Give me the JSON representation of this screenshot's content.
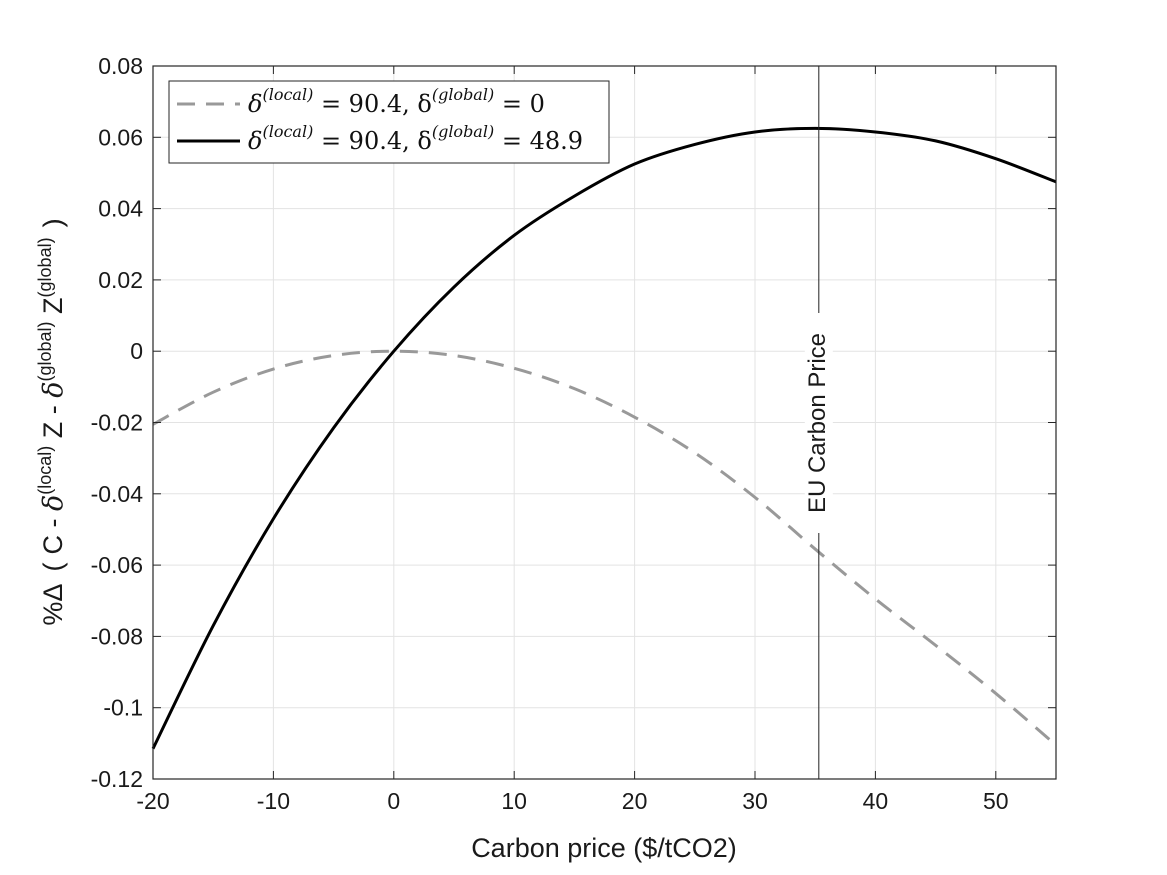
{
  "chart_data": {
    "type": "line",
    "xlabel": "Carbon price ($/tCO2)",
    "ylabel": {
      "prefix": "%Δ",
      "open": "(",
      "c": "C - ",
      "d1": "δ",
      "sup1": "(local)",
      "z1": " Z - ",
      "d2": "δ",
      "sup2": "(global)",
      "z2": " Z",
      "sup3": "(global)",
      "close": ")"
    },
    "xlim": [
      -20,
      55
    ],
    "ylim": [
      -0.12,
      0.08
    ],
    "xticks": [
      -20,
      -10,
      0,
      10,
      20,
      30,
      40,
      50
    ],
    "xtick_labels": [
      "-20",
      "-10",
      "0",
      "10",
      "20",
      "30",
      "40",
      "50"
    ],
    "yticks": [
      -0.12,
      -0.1,
      -0.08,
      -0.06,
      -0.04,
      -0.02,
      0,
      0.02,
      0.04,
      0.06,
      0.08
    ],
    "ytick_labels": [
      "-0.12",
      "-0.1",
      "-0.08",
      "-0.06",
      "-0.04",
      "-0.02",
      "0",
      "0.02",
      "0.04",
      "0.06",
      "0.08"
    ],
    "grid": true,
    "legend_position": "top-left",
    "series": [
      {
        "name": "δ(local) = 90.4, δ(global) = 0",
        "legend": {
          "pre": "δ",
          "sup1": "(local)",
          "mid": " = 90.4, δ",
          "sup2": "(global)",
          "post": " = 0"
        },
        "style": "dashed",
        "color": "#999999",
        "x": [
          -20,
          -15,
          -10,
          -5,
          0,
          5,
          10,
          15,
          20,
          25,
          30,
          35,
          40,
          45,
          50,
          55
        ],
        "y": [
          -0.0205,
          -0.0115,
          -0.005,
          -0.0012,
          0.0,
          -0.0012,
          -0.0048,
          -0.0105,
          -0.0185,
          -0.0285,
          -0.041,
          -0.0555,
          -0.0695,
          -0.0825,
          -0.096,
          -0.1105
        ]
      },
      {
        "name": "δ(local) = 90.4, δ(global) = 48.9",
        "legend": {
          "pre": "δ",
          "sup1": "(local)",
          "mid": " = 90.4, δ",
          "sup2": "(global)",
          "post": " = 48.9"
        },
        "style": "solid",
        "color": "#000000",
        "x": [
          -20,
          -15,
          -10,
          -5,
          0,
          5,
          10,
          15,
          20,
          25,
          30,
          35,
          40,
          45,
          50,
          55
        ],
        "y": [
          -0.1115,
          -0.077,
          -0.047,
          -0.0215,
          0.0,
          0.018,
          0.0325,
          0.0435,
          0.0525,
          0.058,
          0.0615,
          0.0625,
          0.0615,
          0.059,
          0.054,
          0.0475
        ]
      }
    ],
    "annotations": [
      {
        "text": "EU Carbon Price",
        "x": 35.3,
        "orientation": "vertical"
      }
    ]
  }
}
